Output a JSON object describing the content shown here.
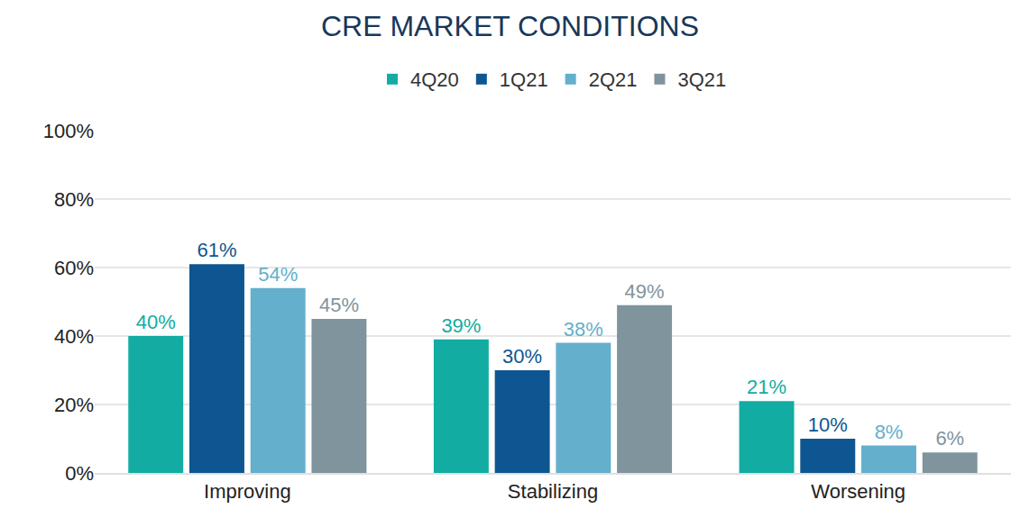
{
  "chart_data": {
    "type": "bar",
    "title": "CRE MARKET CONDITIONS",
    "categories": [
      "Improving",
      "Stabilizing",
      "Worsening"
    ],
    "series": [
      {
        "name": "4Q20",
        "color": "#12aca2",
        "values": [
          40,
          39,
          21
        ],
        "value_labels": [
          "40%",
          "39%",
          "21%"
        ]
      },
      {
        "name": "1Q21",
        "color": "#0e5691",
        "values": [
          61,
          30,
          10
        ],
        "value_labels": [
          "61%",
          "30%",
          "10%"
        ]
      },
      {
        "name": "2Q21",
        "color": "#64afcc",
        "values": [
          54,
          38,
          8
        ],
        "value_labels": [
          "54%",
          "38%",
          "8%"
        ]
      },
      {
        "name": "3Q21",
        "color": "#7f949c",
        "values": [
          45,
          49,
          6
        ],
        "value_labels": [
          "45%",
          "49%",
          "6%"
        ]
      }
    ],
    "ylim": [
      0,
      100
    ],
    "yticks": [
      {
        "value": 0,
        "label": "0%"
      },
      {
        "value": 20,
        "label": "20%"
      },
      {
        "value": 40,
        "label": "40%"
      },
      {
        "value": 60,
        "label": "60%"
      },
      {
        "value": 80,
        "label": "80%"
      },
      {
        "value": 100,
        "label": "100%"
      }
    ],
    "grid": true,
    "legend": "top",
    "data_labels": true
  }
}
